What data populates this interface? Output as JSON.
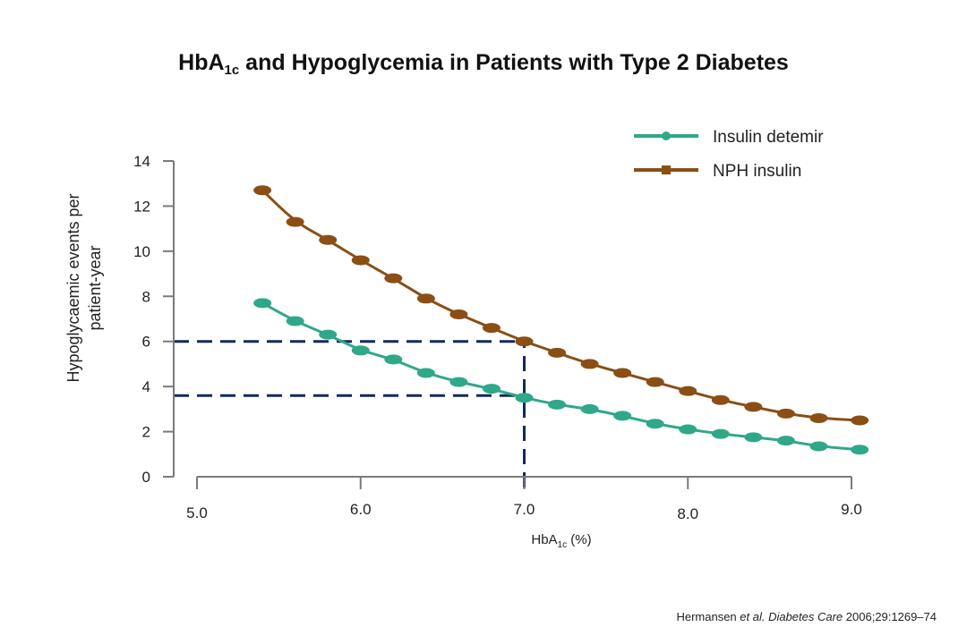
{
  "title": {
    "pre": "HbA",
    "sub": "1c",
    "post": " and Hypoglycemia in Patients with Type 2 Diabetes"
  },
  "chart_data": {
    "type": "line",
    "title": "HbA1c and Hypoglycemia in Patients with Type 2 Diabetes",
    "xlabel": {
      "pre": "HbA",
      "sub": "1c",
      "post": " (%)"
    },
    "ylabel": [
      "Hypoglycaemic events per",
      "patient-year"
    ],
    "xlim": [
      5.0,
      9.0
    ],
    "ylim": [
      0,
      14
    ],
    "x_ticks": [
      "5.0",
      "6.0",
      "7.0",
      "8.0",
      "9.0"
    ],
    "y_ticks": [
      "0",
      "2",
      "4",
      "6",
      "8",
      "10",
      "12",
      "14"
    ],
    "grid": false,
    "legend_position": "top-right",
    "series": [
      {
        "name": "Insulin detemir",
        "color": "#2fa88a",
        "x": [
          5.4,
          5.6,
          5.8,
          6.0,
          6.2,
          6.4,
          6.6,
          6.8,
          7.0,
          7.2,
          7.4,
          7.6,
          7.8,
          8.0,
          8.2,
          8.4,
          8.6,
          8.8,
          9.05
        ],
        "values": [
          7.7,
          6.9,
          6.3,
          5.6,
          5.2,
          4.6,
          4.2,
          3.9,
          3.5,
          3.2,
          3.0,
          2.7,
          2.35,
          2.1,
          1.9,
          1.75,
          1.6,
          1.35,
          1.2
        ]
      },
      {
        "name": "NPH insulin",
        "color": "#8b4e14",
        "x": [
          5.4,
          5.6,
          5.8,
          6.0,
          6.2,
          6.4,
          6.6,
          6.8,
          7.0,
          7.2,
          7.4,
          7.6,
          7.8,
          8.0,
          8.2,
          8.4,
          8.6,
          8.8,
          9.05
        ],
        "values": [
          12.7,
          11.3,
          10.5,
          9.6,
          8.8,
          7.9,
          7.2,
          6.6,
          6.0,
          5.5,
          5.0,
          4.6,
          4.2,
          3.8,
          3.4,
          3.1,
          2.8,
          2.6,
          2.5
        ]
      }
    ],
    "reference_lines": [
      {
        "type": "vertical",
        "x": 7.0,
        "from_y": 0
      },
      {
        "type": "horizontal",
        "y": 6.0,
        "to_x": 7.0
      },
      {
        "type": "horizontal",
        "y": 3.6,
        "to_x": 7.0
      }
    ],
    "reference_color": "#132a5c"
  },
  "citation": {
    "authors": "Hermansen ",
    "etal": "et al.",
    "journal": " Diabetes Care",
    "ref": " 2006;29:1269–74"
  }
}
